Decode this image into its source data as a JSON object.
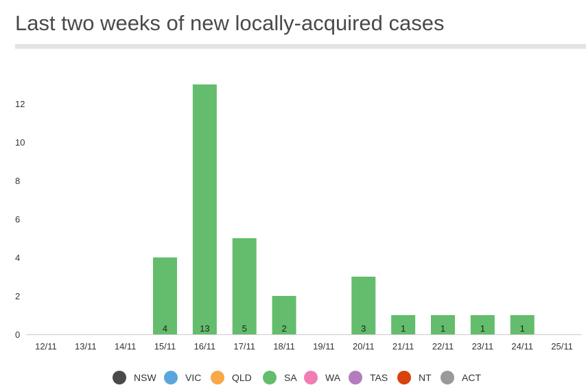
{
  "page": {
    "title": "Last two weeks of new locally-acquired cases"
  },
  "chart_data": {
    "type": "bar",
    "categories": [
      "12/11",
      "13/11",
      "14/11",
      "15/11",
      "16/11",
      "17/11",
      "18/11",
      "19/11",
      "20/11",
      "21/11",
      "22/11",
      "23/11",
      "24/11",
      "25/11"
    ],
    "series": [
      {
        "name": "NSW",
        "color": "#4a4a4a",
        "values": [
          0,
          0,
          0,
          0,
          0,
          0,
          0,
          0,
          0,
          0,
          0,
          0,
          0,
          0
        ]
      },
      {
        "name": "VIC",
        "color": "#5aa6dc",
        "values": [
          0,
          0,
          0,
          0,
          0,
          0,
          0,
          0,
          0,
          0,
          0,
          0,
          0,
          0
        ]
      },
      {
        "name": "QLD",
        "color": "#f9a847",
        "values": [
          0,
          0,
          0,
          0,
          0,
          0,
          0,
          0,
          0,
          0,
          0,
          0,
          0,
          0
        ]
      },
      {
        "name": "SA",
        "color": "#63bd6c",
        "values": [
          0,
          0,
          0,
          4,
          13,
          5,
          2,
          0,
          3,
          1,
          1,
          1,
          1,
          0
        ]
      },
      {
        "name": "WA",
        "color": "#ef7eb5",
        "values": [
          0,
          0,
          0,
          0,
          0,
          0,
          0,
          0,
          0,
          0,
          0,
          0,
          0,
          0
        ]
      },
      {
        "name": "TAS",
        "color": "#b27cbf",
        "values": [
          0,
          0,
          0,
          0,
          0,
          0,
          0,
          0,
          0,
          0,
          0,
          0,
          0,
          0
        ]
      },
      {
        "name": "NT",
        "color": "#d9420b",
        "values": [
          0,
          0,
          0,
          0,
          0,
          0,
          0,
          0,
          0,
          0,
          0,
          0,
          0,
          0
        ]
      },
      {
        "name": "ACT",
        "color": "#999999",
        "values": [
          0,
          0,
          0,
          0,
          0,
          0,
          0,
          0,
          0,
          0,
          0,
          0,
          0,
          0
        ]
      }
    ],
    "y_ticks": [
      0,
      2,
      4,
      6,
      8,
      10,
      12
    ],
    "ylim": [
      0,
      13
    ],
    "xlabel": "",
    "ylabel": "",
    "stacked": true,
    "grid": false,
    "legend_position": "bottom"
  }
}
